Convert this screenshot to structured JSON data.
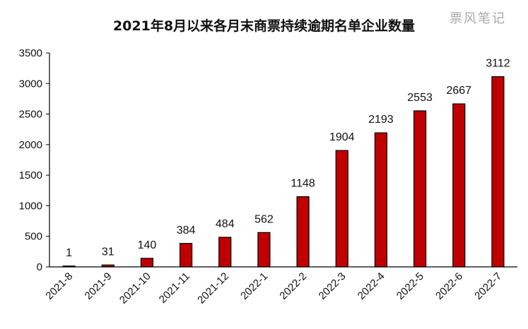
{
  "title": "2021年8月以来各月末商票持续逾期名单企业数量",
  "watermark": "票风笔记",
  "colors": {
    "bar": "#c00000",
    "bar_border": "#000000",
    "axis": "#000000"
  },
  "chart_data": {
    "type": "bar",
    "title": "2021年8月以来各月末商票持续逾期名单企业数量",
    "categories": [
      "2021-8",
      "2021-9",
      "2021-10",
      "2021-11",
      "2021-12",
      "2022-1",
      "2022-2",
      "2022-3",
      "2022-4",
      "2022-5",
      "2022-6",
      "2022-7"
    ],
    "values": [
      1,
      31,
      140,
      384,
      484,
      562,
      1148,
      1904,
      2193,
      2553,
      2667,
      3112
    ],
    "data_labels": [
      "1",
      "31",
      "140",
      "384",
      "484",
      "562",
      "1148",
      "1904",
      "2193",
      "2553",
      "2667",
      "3112"
    ],
    "ylim": [
      0,
      3500
    ],
    "yticks": [
      "0",
      "500",
      "1000",
      "1500",
      "2000",
      "2500",
      "3000",
      "3500"
    ],
    "grid": false,
    "legend": "none"
  }
}
